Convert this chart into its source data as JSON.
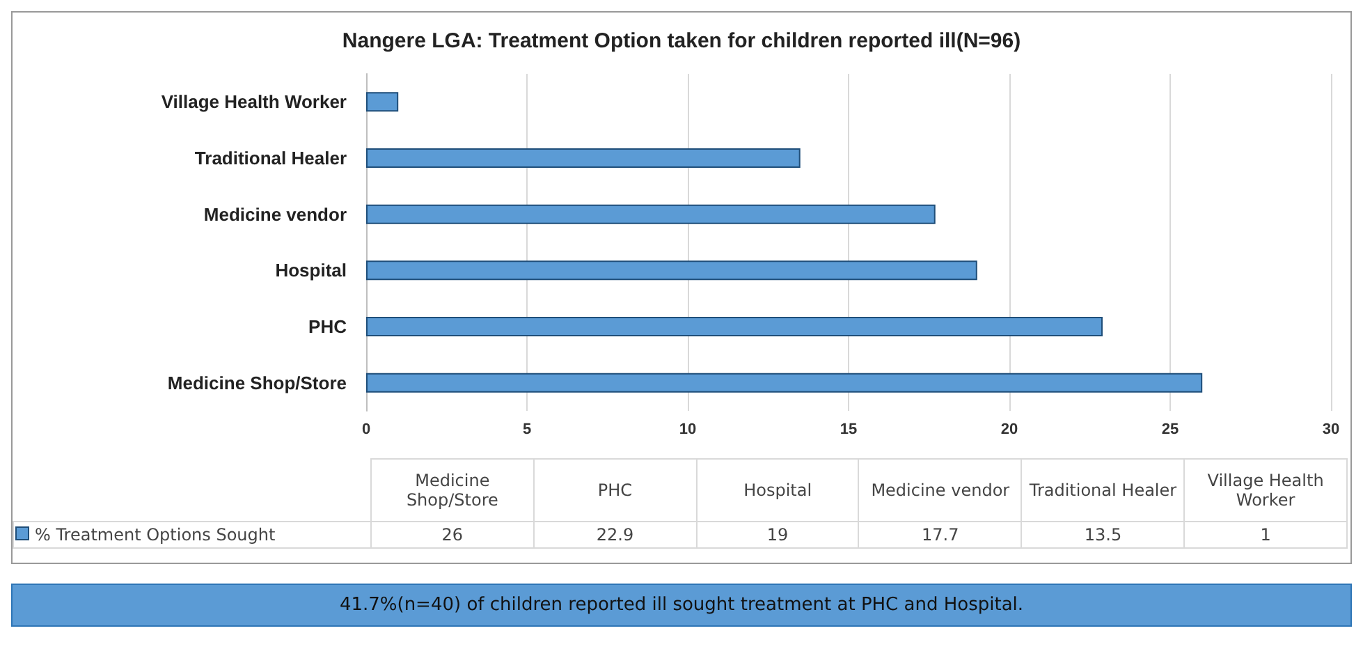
{
  "chart_data": [
    {
      "type": "bar",
      "orientation": "horizontal",
      "title": "Nangere LGA: Treatment Option taken for children reported ill(N=96)",
      "categories": [
        "Village Health Worker",
        "Traditional Healer",
        "Medicine vendor",
        "Hospital",
        "PHC",
        "Medicine Shop/Store"
      ],
      "series": [
        {
          "color": "#5b9bd5",
          "values": [
            1,
            13.5,
            17.7,
            19,
            22.9,
            26
          ]
        }
      ],
      "xlim": [
        0,
        30
      ],
      "xticks": [
        0,
        5,
        10,
        15,
        20,
        25,
        30
      ],
      "grid": "x",
      "annotations": [
        "41.7%(n=40) of children reported ill sought treatment at PHC and Hospital."
      ]
    },
    {
      "type": "other",
      "categories": [
        "Medicine Shop/Store",
        "PHC",
        "Hospital",
        "Medicine vendor",
        "Traditional Healer",
        "Village Health Worker"
      ],
      "series": [
        {
          "name": "% Treatment Options Sought",
          "color": "#5b9bd5",
          "values": [
            26,
            22.9,
            19,
            17.7,
            13.5,
            1
          ]
        }
      ],
      "legend": "left",
      "data_labels": true
    }
  ]
}
